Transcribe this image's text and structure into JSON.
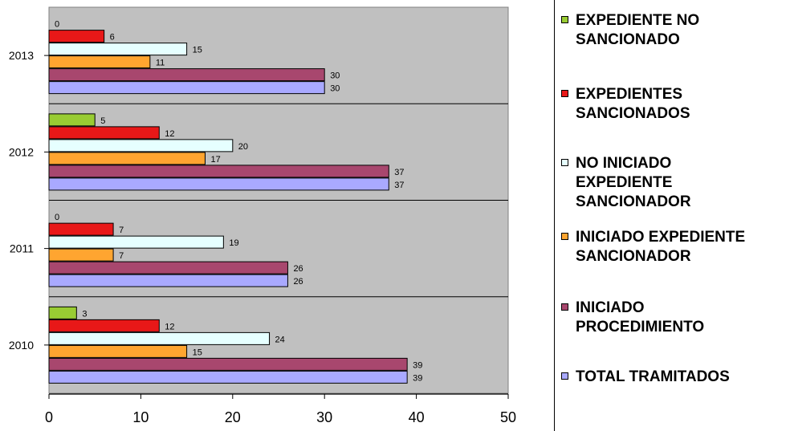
{
  "chart_data": {
    "type": "bar",
    "orientation": "horizontal",
    "categories": [
      "2013",
      "2012",
      "2011",
      "2010"
    ],
    "xlim": [
      0,
      50
    ],
    "x_ticks": [
      "0",
      "10",
      "20",
      "30",
      "40",
      "50"
    ],
    "grid": true,
    "legend_position": "right",
    "series": [
      {
        "name": "EXPEDIENTE NO SANCIONADO",
        "color": "#99cc33",
        "values": [
          0,
          5,
          0,
          3
        ]
      },
      {
        "name": "EXPEDIENTES SANCIONADOS",
        "color": "#e81818",
        "values": [
          6,
          12,
          7,
          12
        ]
      },
      {
        "name": "NO INICIADO EXPEDIENTE SANCIONADOR",
        "color": "#e6ffff",
        "values": [
          15,
          20,
          19,
          24
        ]
      },
      {
        "name": "INICIADO EXPEDIENTE SANCIONADOR",
        "color": "#ffa530",
        "values": [
          11,
          17,
          7,
          15
        ]
      },
      {
        "name": "INICIADO PROCEDIMIENTO",
        "color": "#a8476e",
        "values": [
          30,
          37,
          26,
          39
        ]
      },
      {
        "name": "TOTAL TRAMITADOS",
        "color": "#a9a9ff",
        "values": [
          30,
          37,
          26,
          39
        ]
      }
    ],
    "plot_background": "#c0c0c0"
  },
  "legend": {
    "items": [
      {
        "label": "EXPEDIENTE NO\nSANCIONADO"
      },
      {
        "label": "EXPEDIENTES\nSANCIONADOS"
      },
      {
        "label": "NO INICIADO\nEXPEDIENTE\nSANCIONADOR"
      },
      {
        "label": "INICIADO EXPEDIENTE\nSANCIONADOR"
      },
      {
        "label": "INICIADO\nPROCEDIMIENTO"
      },
      {
        "label": "TOTAL TRAMITADOS"
      }
    ]
  }
}
